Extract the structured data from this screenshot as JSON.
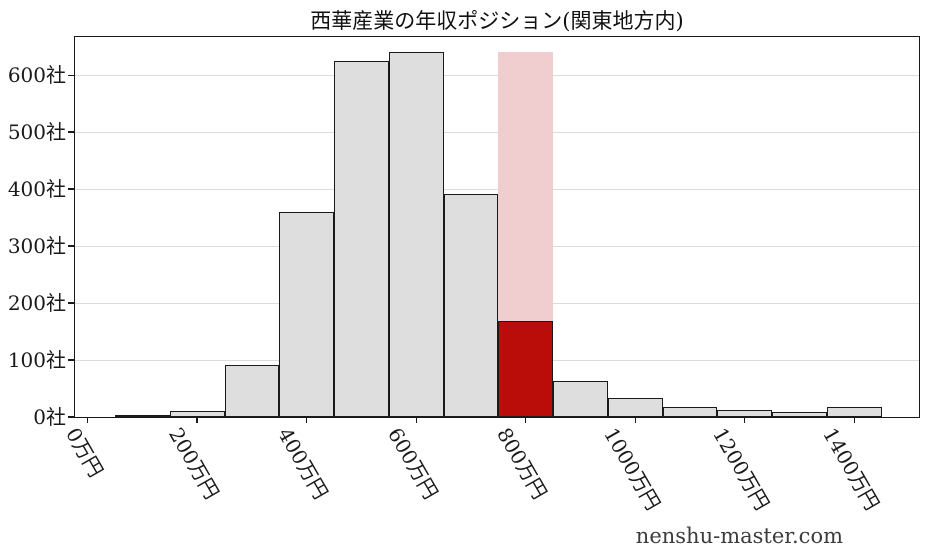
{
  "chart_data": {
    "type": "bar",
    "title": "西華産業の年収ポジション(関東地方内)",
    "watermark": "nenshu-master.com",
    "xlabel": "",
    "ylabel": "",
    "x_unit": "万円",
    "y_unit": "社",
    "bin_width": 100,
    "x": [
      100,
      200,
      300,
      400,
      500,
      600,
      700,
      800,
      900,
      1000,
      1100,
      1200,
      1300,
      1400
    ],
    "values": [
      3,
      10,
      92,
      360,
      625,
      640,
      392,
      168,
      63,
      34,
      18,
      12,
      9,
      18
    ],
    "highlight_x": 800,
    "highlight_value": 168,
    "highlight_band_top": 640,
    "x_tick_values": [
      0,
      200,
      400,
      600,
      800,
      1000,
      1200,
      1400
    ],
    "x_tick_labels": [
      "0万円",
      "200万円",
      "400万円",
      "600万円",
      "800万円",
      "1000万円",
      "1200万円",
      "1400万円"
    ],
    "y_tick_values": [
      0,
      100,
      200,
      300,
      400,
      500,
      600
    ],
    "y_tick_labels": [
      "0社",
      "100社",
      "200社",
      "300社",
      "400社",
      "500社",
      "600社"
    ],
    "xlim": [
      -23,
      1518
    ],
    "ylim": [
      0,
      667
    ],
    "grid": "horizontal",
    "legend": "none",
    "colors": {
      "bar_fill": "#dedede",
      "bar_edge": "#1a1a1a",
      "highlight_fill": "#ba0c09",
      "highlight_band": "#f0cdce",
      "gridline": "#dcdcdc",
      "axis": "#1a1a1a",
      "text": "#1a1a1a",
      "watermark_text": "#3c3c3c"
    }
  }
}
